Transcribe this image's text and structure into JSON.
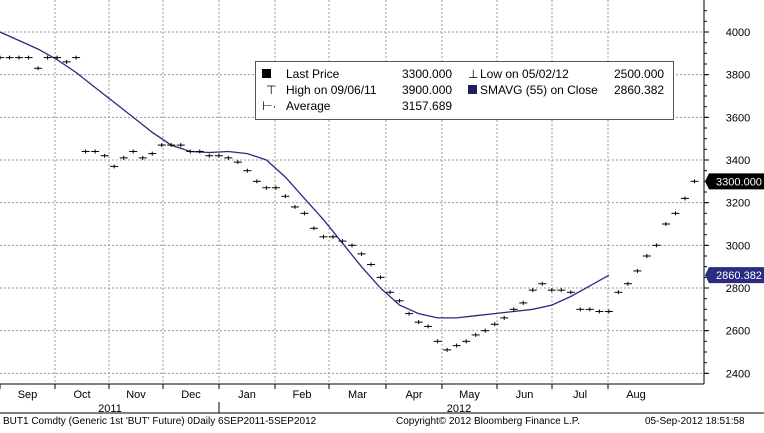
{
  "chart_data": {
    "type": "line",
    "ticker_description": "BUT1 Comdty (Generic 1st 'BUT' Future)  0Daily 6SEP2011-5SEP2012",
    "copyright": "Copyright© 2012 Bloomberg Finance L.P.",
    "timestamp": "05-Sep-2012 18:51:58",
    "ylim": [
      2350,
      4150
    ],
    "y_ticks": [
      "2400",
      "2600",
      "2800",
      "3000",
      "3200",
      "3400",
      "3600",
      "3800",
      "4000"
    ],
    "x_months": [
      "Sep",
      "Oct",
      "Nov",
      "Dec",
      "Jan",
      "Feb",
      "Mar",
      "Apr",
      "May",
      "Jun",
      "Jul",
      "Aug"
    ],
    "x_years": [
      "2011",
      "2012"
    ],
    "last_price_tag": "3300.000",
    "sma_tag": "2860.382",
    "legend": [
      {
        "label": "Last Price",
        "value": "3300.000"
      },
      {
        "label": "Low on 05/02/12",
        "value": "2500.000"
      },
      {
        "label": "High on 09/06/11",
        "value": "3900.000"
      },
      {
        "label": "SMAVG (55) on Close",
        "value": "2860.382"
      },
      {
        "label": "Average",
        "value": "3157.689"
      }
    ],
    "series": [
      {
        "name": "Last Price",
        "style": "price-steps",
        "color": "#000000",
        "values": [
          [
            0,
            3880
          ],
          [
            0.5,
            3880
          ],
          [
            1.0,
            3880
          ],
          [
            1.5,
            3880
          ],
          [
            2.0,
            3830
          ],
          [
            2.5,
            3880
          ],
          [
            3.0,
            3880
          ],
          [
            3.5,
            3860
          ],
          [
            4.0,
            3880
          ],
          [
            4.5,
            3440
          ],
          [
            5.0,
            3440
          ],
          [
            5.5,
            3420
          ],
          [
            6.0,
            3370
          ],
          [
            6.5,
            3410
          ],
          [
            7.0,
            3440
          ],
          [
            7.5,
            3410
          ],
          [
            8.0,
            3430
          ],
          [
            8.5,
            3470
          ],
          [
            9.0,
            3470
          ],
          [
            9.5,
            3470
          ],
          [
            10.0,
            3440
          ],
          [
            10.5,
            3440
          ],
          [
            11.0,
            3420
          ],
          [
            11.5,
            3420
          ],
          [
            12.0,
            3410
          ],
          [
            12.5,
            3390
          ],
          [
            13.0,
            3350
          ],
          [
            13.5,
            3300
          ],
          [
            14.0,
            3270
          ],
          [
            14.5,
            3270
          ],
          [
            15.0,
            3230
          ],
          [
            15.5,
            3180
          ],
          [
            16.0,
            3150
          ],
          [
            16.5,
            3080
          ],
          [
            17.0,
            3040
          ],
          [
            17.5,
            3040
          ],
          [
            18.0,
            3020
          ],
          [
            18.5,
            3000
          ],
          [
            19.0,
            2960
          ],
          [
            19.5,
            2910
          ],
          [
            20.0,
            2850
          ],
          [
            20.5,
            2780
          ],
          [
            21.0,
            2740
          ],
          [
            21.5,
            2680
          ],
          [
            22.0,
            2640
          ],
          [
            22.5,
            2620
          ],
          [
            23.0,
            2550
          ],
          [
            23.5,
            2510
          ],
          [
            24.0,
            2530
          ],
          [
            24.5,
            2550
          ],
          [
            25.0,
            2580
          ],
          [
            25.5,
            2600
          ],
          [
            26.0,
            2630
          ],
          [
            26.5,
            2660
          ],
          [
            27.0,
            2700
          ],
          [
            27.5,
            2730
          ],
          [
            28.0,
            2790
          ],
          [
            28.5,
            2820
          ],
          [
            29.0,
            2790
          ],
          [
            29.5,
            2790
          ],
          [
            30.0,
            2780
          ],
          [
            30.5,
            2700
          ],
          [
            31.0,
            2700
          ],
          [
            31.5,
            2690
          ],
          [
            32.0,
            2690
          ],
          [
            32.5,
            2780
          ],
          [
            33.0,
            2820
          ],
          [
            33.5,
            2880
          ],
          [
            34.0,
            2950
          ],
          [
            34.5,
            3000
          ],
          [
            35.0,
            3100
          ],
          [
            35.5,
            3150
          ],
          [
            36.0,
            3220
          ],
          [
            36.5,
            3300
          ]
        ]
      },
      {
        "name": "SMAVG (55) on Close",
        "style": "line",
        "color": "#2b2b80",
        "values": [
          [
            0,
            4000
          ],
          [
            1,
            3960
          ],
          [
            2,
            3920
          ],
          [
            3,
            3870
          ],
          [
            4,
            3810
          ],
          [
            5,
            3740
          ],
          [
            6,
            3670
          ],
          [
            7,
            3600
          ],
          [
            8,
            3530
          ],
          [
            9,
            3470
          ],
          [
            10,
            3440
          ],
          [
            11,
            3435
          ],
          [
            12,
            3440
          ],
          [
            13,
            3430
          ],
          [
            14,
            3400
          ],
          [
            15,
            3320
          ],
          [
            16,
            3220
          ],
          [
            17,
            3120
          ],
          [
            18,
            3010
          ],
          [
            19,
            2900
          ],
          [
            20,
            2800
          ],
          [
            21,
            2720
          ],
          [
            22,
            2680
          ],
          [
            23,
            2660
          ],
          [
            24,
            2660
          ],
          [
            25,
            2670
          ],
          [
            26,
            2680
          ],
          [
            27,
            2690
          ],
          [
            28,
            2700
          ],
          [
            29,
            2720
          ],
          [
            30,
            2760
          ],
          [
            31,
            2810
          ],
          [
            32,
            2860
          ]
        ]
      }
    ]
  }
}
